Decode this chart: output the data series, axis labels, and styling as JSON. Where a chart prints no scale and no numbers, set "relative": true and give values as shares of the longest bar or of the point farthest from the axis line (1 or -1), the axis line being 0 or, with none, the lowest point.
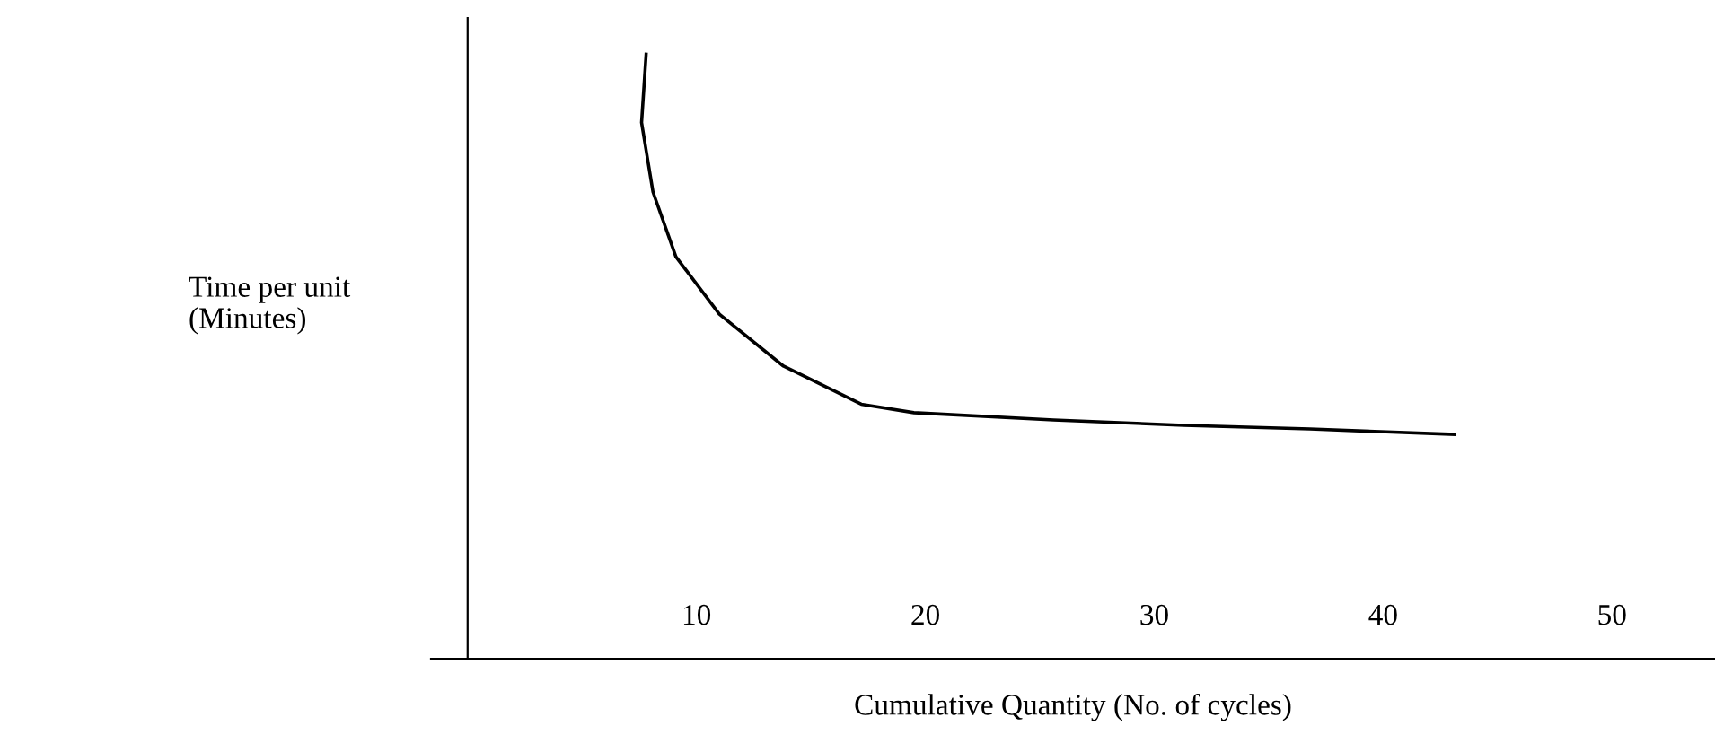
{
  "chart_data": {
    "type": "line",
    "relative": true,
    "xlabel": "Cumulative Quantity (No. of cycles)",
    "ylabel": "Time per unit\n(Minutes)",
    "xlim": [
      -1.6,
      54.5
    ],
    "xticks": [
      10,
      20,
      30,
      40,
      50
    ],
    "grid": false,
    "marker": "none",
    "line_style": "solid",
    "series": [
      {
        "color": "#000000",
        "x": [
          7.8,
          7.6,
          8.1,
          9.1,
          11.0,
          13.8,
          17.2,
          19.5,
          25.6,
          31.3,
          36.8,
          43.1
        ],
        "values": [
          1.0,
          0.887,
          0.772,
          0.665,
          0.57,
          0.484,
          0.421,
          0.407,
          0.395,
          0.386,
          0.38,
          0.371
        ]
      }
    ]
  }
}
